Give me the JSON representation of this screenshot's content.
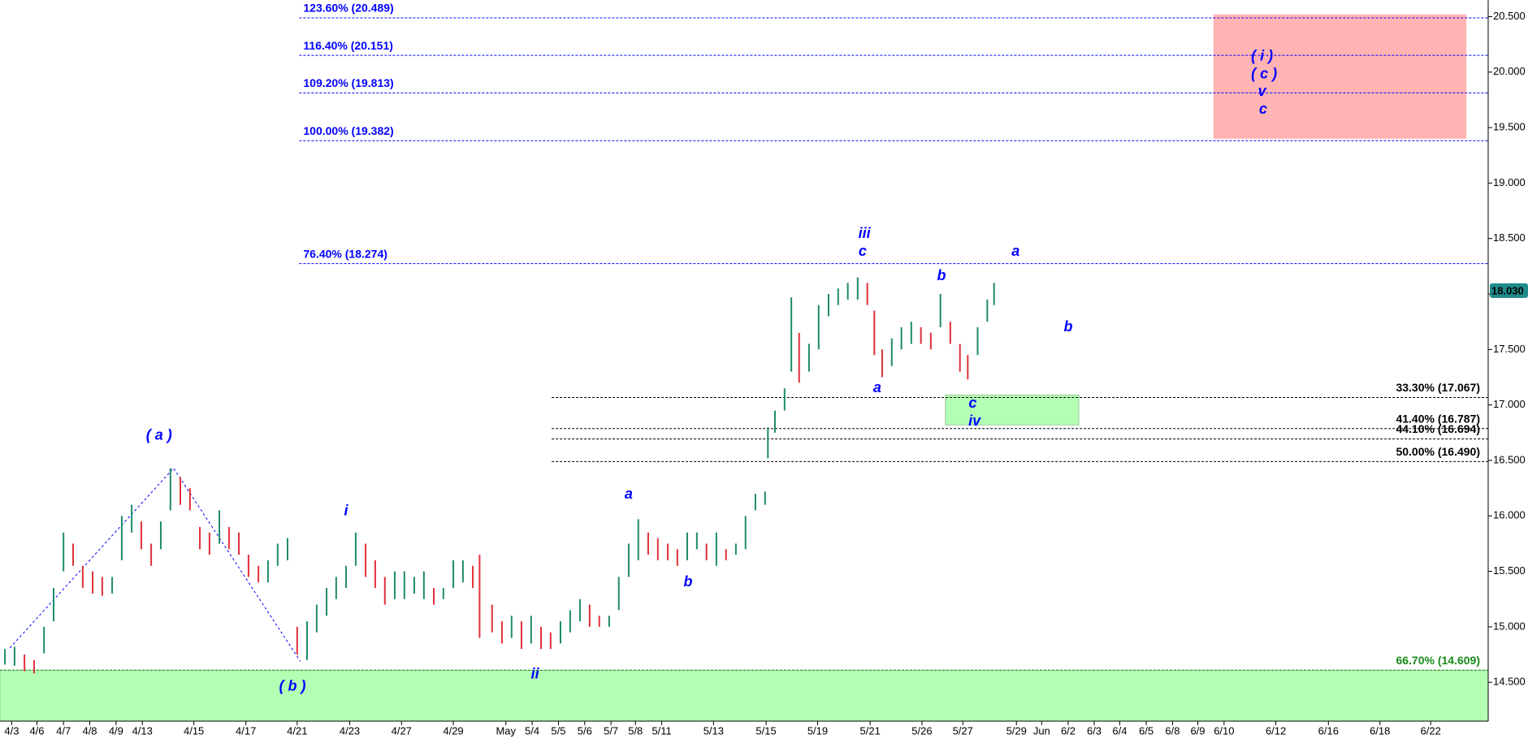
{
  "chart_data": {
    "type": "ohlc",
    "x": [
      -0.26,
      0.11,
      0.49,
      0.86,
      1.24,
      1.61,
      1.99,
      2.36,
      2.73,
      3.11,
      3.48,
      3.86,
      4.23,
      4.61,
      4.98,
      5.36,
      5.73,
      6.1,
      6.48,
      6.85,
      7.23,
      7.6,
      7.98,
      8.35,
      8.73,
      9.1,
      9.48,
      9.85,
      10.22,
      10.6,
      10.97,
      11.35,
      11.72,
      12.1,
      12.47,
      12.85,
      13.22,
      13.6,
      13.97,
      14.34,
      14.72,
      15.09,
      15.47,
      15.84,
      16.22,
      16.59,
      16.97,
      17.34,
      17.72,
      17.98,
      18.46,
      18.84,
      19.21,
      19.59,
      19.96,
      20.34,
      20.71,
      21.09,
      21.46,
      21.84,
      22.21,
      22.58,
      22.96,
      23.33,
      23.71,
      24.08,
      24.46,
      24.83,
      25.21,
      25.58,
      25.96,
      26.33,
      26.7,
      27.08,
      27.45,
      27.83,
      28.2,
      28.58,
      28.95,
      29.06,
      29.33,
      29.7,
      29.96,
      30.26,
      30.64,
      31.01,
      31.39,
      31.76,
      32.13,
      32.51,
      32.88,
      33.15,
      33.45,
      33.82,
      34.19,
      34.57,
      34.94,
      35.32,
      35.69,
      36.07,
      36.44,
      36.74,
      37.12,
      37.49,
      37.75
    ],
    "high": [
      14.8,
      14.82,
      14.75,
      14.7,
      15.0,
      15.35,
      15.85,
      15.75,
      15.55,
      15.5,
      15.45,
      15.45,
      16.0,
      16.1,
      15.95,
      15.75,
      15.95,
      16.43,
      16.35,
      16.25,
      15.9,
      15.85,
      16.05,
      15.9,
      15.85,
      15.65,
      15.55,
      15.6,
      15.75,
      15.8,
      15.0,
      15.05,
      15.2,
      15.35,
      15.45,
      15.55,
      15.85,
      15.75,
      15.6,
      15.45,
      15.5,
      15.5,
      15.45,
      15.5,
      15.35,
      15.35,
      15.6,
      15.6,
      15.55,
      15.65,
      15.2,
      15.05,
      15.1,
      15.05,
      15.1,
      15.0,
      14.95,
      15.05,
      15.15,
      15.25,
      15.2,
      15.1,
      15.1,
      15.45,
      15.75,
      15.97,
      15.85,
      15.8,
      15.75,
      15.7,
      15.85,
      15.85,
      15.75,
      15.85,
      15.7,
      15.75,
      16.0,
      16.2,
      16.22,
      16.8,
      16.95,
      17.15,
      17.97,
      17.65,
      17.55,
      17.9,
      18.0,
      18.05,
      18.1,
      18.15,
      18.1,
      17.85,
      17.5,
      17.6,
      17.7,
      17.75,
      17.7,
      17.65,
      18.0,
      17.75,
      17.55,
      17.45,
      17.7,
      17.95,
      18.1
    ],
    "low": [
      14.66,
      14.65,
      14.6,
      14.58,
      14.76,
      15.05,
      15.5,
      15.55,
      15.35,
      15.3,
      15.28,
      15.3,
      15.6,
      15.85,
      15.7,
      15.55,
      15.7,
      16.05,
      16.1,
      16.05,
      15.7,
      15.65,
      15.75,
      15.7,
      15.65,
      15.45,
      15.4,
      15.4,
      15.55,
      15.6,
      14.75,
      14.7,
      14.95,
      15.1,
      15.25,
      15.35,
      15.55,
      15.45,
      15.35,
      15.2,
      15.25,
      15.25,
      15.3,
      15.25,
      15.2,
      15.25,
      15.35,
      15.4,
      15.35,
      14.9,
      14.95,
      14.85,
      14.9,
      14.8,
      14.85,
      14.8,
      14.8,
      14.85,
      14.95,
      15.05,
      15.0,
      15.0,
      15.0,
      15.15,
      15.45,
      15.6,
      15.65,
      15.6,
      15.6,
      15.55,
      15.6,
      15.7,
      15.6,
      15.55,
      15.6,
      15.65,
      15.7,
      16.05,
      16.1,
      16.52,
      16.75,
      16.95,
      17.3,
      17.2,
      17.3,
      17.5,
      17.8,
      17.9,
      17.95,
      17.95,
      17.9,
      17.45,
      17.25,
      17.35,
      17.5,
      17.55,
      17.55,
      17.5,
      17.7,
      17.55,
      17.3,
      17.23,
      17.45,
      17.75,
      17.9
    ],
    "up_color": "#1f8a6e",
    "down_color": "#e0303a",
    "xlim": [
      -0.45,
      56.74
    ],
    "ylim": [
      14.15,
      20.65
    ],
    "xticks": [
      {
        "value": 0,
        "label": "4/3"
      },
      {
        "value": 0.97,
        "label": "4/6"
      },
      {
        "value": 1.99,
        "label": "4/7"
      },
      {
        "value": 3.0,
        "label": "4/8"
      },
      {
        "value": 4.01,
        "label": "4/9"
      },
      {
        "value": 5.02,
        "label": "4/13"
      },
      {
        "value": 7.0,
        "label": "4/15"
      },
      {
        "value": 9.0,
        "label": "4/17"
      },
      {
        "value": 10.97,
        "label": "4/21"
      },
      {
        "value": 12.99,
        "label": "4/23"
      },
      {
        "value": 14.98,
        "label": "4/27"
      },
      {
        "value": 16.97,
        "label": "4/29"
      },
      {
        "value": 18.99,
        "label": "May"
      },
      {
        "value": 20.0,
        "label": "5/4"
      },
      {
        "value": 21.01,
        "label": "5/5"
      },
      {
        "value": 22.02,
        "label": "5/6"
      },
      {
        "value": 23.03,
        "label": "5/7"
      },
      {
        "value": 23.97,
        "label": "5/8"
      },
      {
        "value": 24.98,
        "label": "5/11"
      },
      {
        "value": 26.97,
        "label": "5/13"
      },
      {
        "value": 28.99,
        "label": "5/15"
      },
      {
        "value": 30.97,
        "label": "5/19"
      },
      {
        "value": 32.99,
        "label": "5/21"
      },
      {
        "value": 34.98,
        "label": "5/26"
      },
      {
        "value": 36.55,
        "label": "5/27"
      },
      {
        "value": 38.61,
        "label": "5/29"
      },
      {
        "value": 39.58,
        "label": "Jun"
      },
      {
        "value": 40.6,
        "label": "6/2"
      },
      {
        "value": 41.6,
        "label": "6/3"
      },
      {
        "value": 42.58,
        "label": "6/4"
      },
      {
        "value": 43.6,
        "label": "6/5"
      },
      {
        "value": 44.61,
        "label": "6/8"
      },
      {
        "value": 45.58,
        "label": "6/9"
      },
      {
        "value": 46.59,
        "label": "6/10"
      },
      {
        "value": 48.58,
        "label": "6/12"
      },
      {
        "value": 50.6,
        "label": "6/16"
      },
      {
        "value": 52.58,
        "label": "6/18"
      },
      {
        "value": 54.53,
        "label": "6/22"
      }
    ],
    "yticks": [
      {
        "value": 14.5,
        "label": "14.500"
      },
      {
        "value": 15,
        "label": "15.000"
      },
      {
        "value": 15.5,
        "label": "15.500"
      },
      {
        "value": 16,
        "label": "16.000"
      },
      {
        "value": 16.5,
        "label": "16.500"
      },
      {
        "value": 17,
        "label": "17.000"
      },
      {
        "value": 17.5,
        "label": "17.500"
      },
      {
        "value": 18,
        "label": "18.000"
      },
      {
        "value": 18.5,
        "label": "18.500"
      },
      {
        "value": 19,
        "label": "19.000"
      },
      {
        "value": 19.5,
        "label": "19.500"
      },
      {
        "value": 20,
        "label": "20.000"
      },
      {
        "value": 20.5,
        "label": "20.500"
      }
    ],
    "last_price": {
      "value": 18.03,
      "label": "18.030",
      "color": "#1f8a8a"
    },
    "levels": [
      {
        "label": "123.60% (20.489)",
        "value": 20.489,
        "color": "#0000ff",
        "x_start": 11.05,
        "side": "left"
      },
      {
        "label": "116.40% (20.151)",
        "value": 20.151,
        "color": "#0000ff",
        "x_start": 11.05,
        "side": "left"
      },
      {
        "label": "109.20% (19.813)",
        "value": 19.813,
        "color": "#0000ff",
        "x_start": 11.05,
        "side": "left"
      },
      {
        "label": "100.00% (19.382)",
        "value": 19.382,
        "color": "#0000ff",
        "x_start": 11.05,
        "side": "left"
      },
      {
        "label": "76.40% (18.274)",
        "value": 18.274,
        "color": "#0000ff",
        "x_start": 11.05,
        "side": "left"
      },
      {
        "label": "33.30% (17.067)",
        "value": 17.067,
        "color": "#000000",
        "x_start": 20.75,
        "side": "right"
      },
      {
        "label": "41.40% (16.787)",
        "value": 16.787,
        "color": "#000000",
        "x_start": 20.75,
        "side": "right"
      },
      {
        "label": "44.10% (16.694)",
        "value": 16.694,
        "color": "#000000",
        "x_start": 20.75,
        "side": "right"
      },
      {
        "label": "50.00% (16.490)",
        "value": 16.49,
        "color": "#000000",
        "x_start": 20.75,
        "side": "right"
      },
      {
        "label": "66.70% (14.609)",
        "value": 14.609,
        "color": "#1a8a1a",
        "x_start": -0.45,
        "side": "right"
      }
    ],
    "zones": [
      {
        "x": [
          46.18,
          55.9
        ],
        "y": [
          19.4,
          20.52
        ],
        "color": "#ffb3b3"
      },
      {
        "x": [
          35.88,
          41.01
        ],
        "y": [
          16.82,
          17.09
        ],
        "color": "#b3ffb3"
      },
      {
        "x": [
          -0.45,
          56.74
        ],
        "y": [
          14.15,
          14.609
        ],
        "color": "#b3ffb3"
      }
    ],
    "trendline": {
      "x": [
        -0.07,
        6.22,
        11.09
      ],
      "y": [
        14.81,
        16.43,
        14.69
      ],
      "color": "#0000ff"
    },
    "wave_labels": [
      {
        "text": "( a )",
        "x": 5.66,
        "y": 16.72
      },
      {
        "text": "( b )",
        "x": 10.79,
        "y": 14.46
      },
      {
        "text": "i",
        "x": 12.85,
        "y": 16.04
      },
      {
        "text": "ii",
        "x": 20.11,
        "y": 14.57
      },
      {
        "text": "a",
        "x": 23.71,
        "y": 16.19
      },
      {
        "text": "b",
        "x": 25.99,
        "y": 15.4
      },
      {
        "text": "iii",
        "x": 32.77,
        "y": 18.54
      },
      {
        "text": "c",
        "x": 32.7,
        "y": 18.38
      },
      {
        "text": "a",
        "x": 33.26,
        "y": 17.15
      },
      {
        "text": "b",
        "x": 35.73,
        "y": 18.16
      },
      {
        "text": "c",
        "x": 36.93,
        "y": 17.01
      },
      {
        "text": "iv",
        "x": 37.0,
        "y": 16.85
      },
      {
        "text": "a",
        "x": 38.58,
        "y": 18.38
      },
      {
        "text": "b",
        "x": 40.6,
        "y": 17.7
      },
      {
        "text": "( i )",
        "x": 48.05,
        "y": 20.14
      },
      {
        "text": "( c )",
        "x": 48.13,
        "y": 19.98
      },
      {
        "text": "v",
        "x": 48.05,
        "y": 19.82
      },
      {
        "text": "c",
        "x": 48.09,
        "y": 19.66
      }
    ]
  }
}
